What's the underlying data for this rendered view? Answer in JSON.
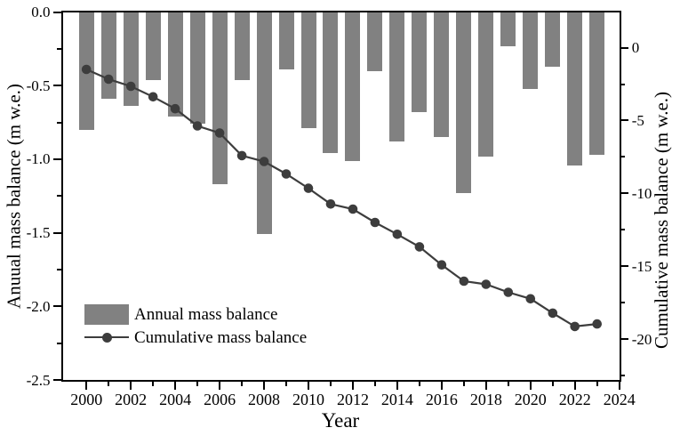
{
  "figure": {
    "background": "#ffffff",
    "bar_color": "#818181",
    "line_color": "#3d3d3d",
    "axis_color": "#000000"
  },
  "axes": {
    "x": {
      "label": "Year",
      "range": [
        1998.89,
        2024.0
      ],
      "major_ticks": [
        2000,
        2002,
        2004,
        2006,
        2008,
        2010,
        2012,
        2014,
        2016,
        2018,
        2020,
        2022,
        2024
      ],
      "major_tick_labels": [
        "2000",
        "2002",
        "2004",
        "2006",
        "2008",
        "2010",
        "2012",
        "2014",
        "2016",
        "2018",
        "2020",
        "2022",
        "2024"
      ],
      "minor_ticks": [
        2001,
        2003,
        2005,
        2007,
        2009,
        2011,
        2013,
        2015,
        2017,
        2019,
        2021,
        2023
      ]
    },
    "left": {
      "label": "Anuual mass balance (m w.e.)",
      "range": [
        0,
        -2.5
      ],
      "major_ticks": [
        0,
        -0.5,
        -1.0,
        -1.5,
        -2.0,
        -2.5
      ],
      "major_tick_labels": [
        "0.0",
        "-0.5",
        "-1.0",
        "-1.5",
        "-2.0",
        "-2.5"
      ],
      "minor_ticks": [
        -0.25,
        -0.75,
        -1.25,
        -1.75,
        -2.25
      ]
    },
    "right": {
      "label": "Cumulative mass balance (m w.e.)",
      "range": [
        2.45,
        -22.81
      ],
      "major_ticks": [
        0,
        -5,
        -10,
        -15,
        -20
      ],
      "major_tick_labels": [
        "0",
        "-5",
        "-10",
        "-15",
        "-20"
      ],
      "minor_ticks": [
        -2.5,
        -7.5,
        -12.5,
        -17.5,
        -22.5
      ]
    }
  },
  "legend": {
    "items": [
      {
        "label": "Annual mass balance",
        "type": "bar"
      },
      {
        "label": "Cumulative mass balance",
        "type": "line"
      }
    ]
  },
  "chart_data": {
    "type": "combo",
    "x": [
      2000,
      2001,
      2002,
      2003,
      2004,
      2005,
      2006,
      2007,
      2008,
      2009,
      2010,
      2011,
      2012,
      2013,
      2014,
      2015,
      2016,
      2017,
      2018,
      2019,
      2020,
      2021,
      2022,
      2023
    ],
    "series": [
      {
        "name": "Annual mass balance",
        "type": "bar",
        "axis": "left",
        "values": [
          -0.8,
          -0.59,
          -0.64,
          -0.46,
          -0.71,
          -0.76,
          -1.17,
          -0.46,
          -1.51,
          -0.39,
          -0.79,
          -0.96,
          -1.01,
          -0.4,
          -0.88,
          -0.68,
          -0.85,
          -1.23,
          -0.98,
          -0.23,
          -0.52,
          -0.37,
          -1.04,
          -0.97
        ]
      },
      {
        "name": "Cumulative mass balance",
        "type": "line",
        "axis": "right",
        "values": [
          -1.49,
          -2.16,
          -2.65,
          -3.37,
          -4.19,
          -5.37,
          -5.86,
          -7.41,
          -7.81,
          -8.67,
          -9.65,
          -10.73,
          -11.08,
          -12.0,
          -12.81,
          -13.67,
          -14.91,
          -16.03,
          -16.24,
          -16.79,
          -17.24,
          -18.22,
          -19.14,
          -18.97
        ]
      }
    ],
    "title": "",
    "xlabel": "Year",
    "ylabel_left": "Anuual mass balance (m w.e.)",
    "ylabel_right": "Cumulative mass balance (m w.e.)",
    "left_ylim": [
      0,
      -2.5
    ],
    "right_ylim": [
      2.45,
      -22.81
    ],
    "grid": false,
    "legend_position": "lower-left-inside"
  }
}
